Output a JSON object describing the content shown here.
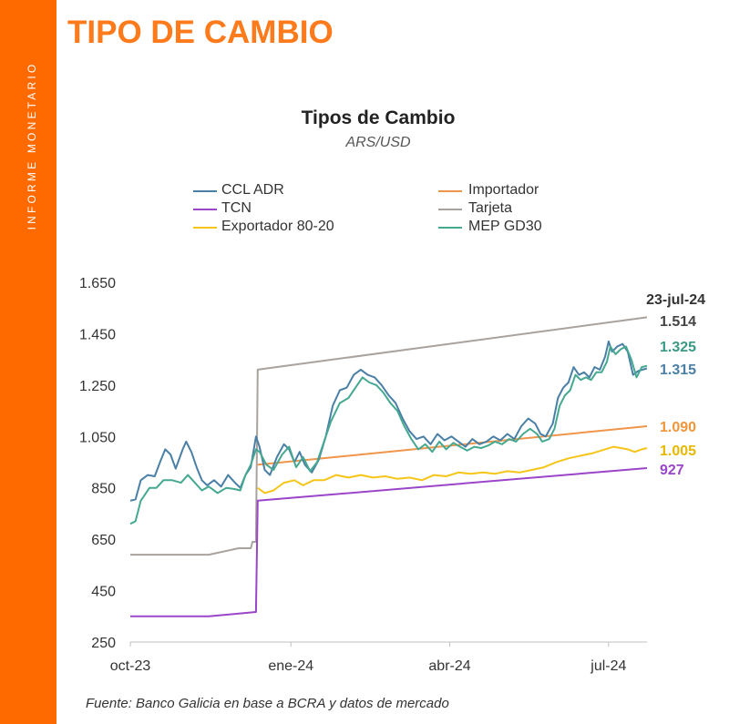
{
  "page": {
    "side_label": "INFORME MONETARIO",
    "section_title": "TIPO DE CAMBIO",
    "source": "Fuente: Banco Galicia en base a BCRA y datos de mercado"
  },
  "colors": {
    "accent": "#ff6a00",
    "section_title": "#ff7a1a"
  },
  "chart_data": {
    "type": "line",
    "title": "Tipos de Cambio",
    "subtitle": "ARS/USD",
    "xlabel": "",
    "ylabel": "",
    "xlim": [
      "2023-10-01",
      "2024-07-23"
    ],
    "ylim": [
      250,
      1650
    ],
    "y_ticks": [
      {
        "value": 250,
        "label": "250"
      },
      {
        "value": 450,
        "label": "450"
      },
      {
        "value": 650,
        "label": "650"
      },
      {
        "value": 850,
        "label": "850"
      },
      {
        "value": 1050,
        "label": "1.050"
      },
      {
        "value": 1250,
        "label": "1.250"
      },
      {
        "value": 1450,
        "label": "1.450"
      },
      {
        "value": 1650,
        "label": "1.650"
      }
    ],
    "x_ticks": [
      {
        "date": "2023-10-01",
        "label": "oct-23"
      },
      {
        "date": "2024-01-01",
        "label": "ene-24"
      },
      {
        "date": "2024-04-01",
        "label": "abr-24"
      },
      {
        "date": "2024-07-01",
        "label": "jul-24"
      }
    ],
    "grid": false,
    "legend_position": "top",
    "end_date_label": "23-jul-24",
    "series": [
      {
        "name": "CCL ADR",
        "color": "#4a7fa6",
        "end_label": "1.315",
        "points": [
          [
            "2023-10-01",
            800
          ],
          [
            "2023-10-04",
            805
          ],
          [
            "2023-10-07",
            880
          ],
          [
            "2023-10-11",
            900
          ],
          [
            "2023-10-15",
            895
          ],
          [
            "2023-10-18",
            950
          ],
          [
            "2023-10-21",
            1000
          ],
          [
            "2023-10-24",
            980
          ],
          [
            "2023-10-27",
            925
          ],
          [
            "2023-10-31",
            1000
          ],
          [
            "2023-11-02",
            1030
          ],
          [
            "2023-11-05",
            990
          ],
          [
            "2023-11-08",
            930
          ],
          [
            "2023-11-11",
            880
          ],
          [
            "2023-11-14",
            860
          ],
          [
            "2023-11-18",
            880
          ],
          [
            "2023-11-22",
            855
          ],
          [
            "2023-11-26",
            900
          ],
          [
            "2023-11-30",
            870
          ],
          [
            "2023-12-03",
            850
          ],
          [
            "2023-12-06",
            900
          ],
          [
            "2023-12-09",
            930
          ],
          [
            "2023-12-12",
            1050
          ],
          [
            "2023-12-14",
            1010
          ],
          [
            "2023-12-17",
            920
          ],
          [
            "2023-12-20",
            900
          ],
          [
            "2023-12-24",
            970
          ],
          [
            "2023-12-28",
            1020
          ],
          [
            "2023-12-31",
            1000
          ],
          [
            "2024-01-03",
            950
          ],
          [
            "2024-01-06",
            990
          ],
          [
            "2024-01-09",
            940
          ],
          [
            "2024-01-13",
            910
          ],
          [
            "2024-01-17",
            960
          ],
          [
            "2024-01-21",
            1050
          ],
          [
            "2024-01-25",
            1170
          ],
          [
            "2024-01-29",
            1230
          ],
          [
            "2024-02-02",
            1240
          ],
          [
            "2024-02-06",
            1290
          ],
          [
            "2024-02-10",
            1310
          ],
          [
            "2024-02-14",
            1290
          ],
          [
            "2024-02-18",
            1280
          ],
          [
            "2024-02-22",
            1250
          ],
          [
            "2024-02-26",
            1210
          ],
          [
            "2024-03-01",
            1180
          ],
          [
            "2024-03-05",
            1120
          ],
          [
            "2024-03-09",
            1070
          ],
          [
            "2024-03-13",
            1040
          ],
          [
            "2024-03-17",
            1050
          ],
          [
            "2024-03-21",
            1020
          ],
          [
            "2024-03-25",
            1060
          ],
          [
            "2024-03-29",
            1035
          ],
          [
            "2024-04-02",
            1050
          ],
          [
            "2024-04-06",
            1030
          ],
          [
            "2024-04-10",
            1010
          ],
          [
            "2024-04-14",
            1040
          ],
          [
            "2024-04-18",
            1020
          ],
          [
            "2024-04-22",
            1030
          ],
          [
            "2024-04-26",
            1050
          ],
          [
            "2024-04-30",
            1035
          ],
          [
            "2024-05-04",
            1060
          ],
          [
            "2024-05-08",
            1040
          ],
          [
            "2024-05-12",
            1090
          ],
          [
            "2024-05-16",
            1120
          ],
          [
            "2024-05-20",
            1100
          ],
          [
            "2024-05-23",
            1060
          ],
          [
            "2024-05-26",
            1050
          ],
          [
            "2024-05-30",
            1100
          ],
          [
            "2024-06-02",
            1200
          ],
          [
            "2024-06-05",
            1240
          ],
          [
            "2024-06-08",
            1260
          ],
          [
            "2024-06-11",
            1320
          ],
          [
            "2024-06-14",
            1290
          ],
          [
            "2024-06-17",
            1300
          ],
          [
            "2024-06-20",
            1280
          ],
          [
            "2024-06-23",
            1320
          ],
          [
            "2024-06-26",
            1310
          ],
          [
            "2024-06-29",
            1360
          ],
          [
            "2024-07-01",
            1420
          ],
          [
            "2024-07-03",
            1380
          ],
          [
            "2024-07-06",
            1400
          ],
          [
            "2024-07-09",
            1410
          ],
          [
            "2024-07-12",
            1380
          ],
          [
            "2024-07-15",
            1290
          ],
          [
            "2024-07-18",
            1305
          ],
          [
            "2024-07-23",
            1315
          ]
        ]
      },
      {
        "name": "Importador",
        "color": "#f0954a",
        "end_label": "1.090",
        "points": [
          [
            "2023-12-13",
            940
          ],
          [
            "2024-07-23",
            1090
          ]
        ]
      },
      {
        "name": "TCN",
        "color": "#9b45c8",
        "end_label": "927",
        "points": [
          [
            "2023-10-01",
            350
          ],
          [
            "2023-11-15",
            350
          ],
          [
            "2023-12-12",
            367
          ],
          [
            "2023-12-13",
            800
          ],
          [
            "2024-07-23",
            927
          ]
        ]
      },
      {
        "name": "Tarjeta",
        "color": "#a9a29d",
        "end_label": "1.514",
        "points": [
          [
            "2023-10-01",
            590
          ],
          [
            "2023-11-15",
            590
          ],
          [
            "2023-12-02",
            615
          ],
          [
            "2023-12-09",
            615
          ],
          [
            "2023-12-10",
            640
          ],
          [
            "2023-12-12",
            640
          ],
          [
            "2023-12-13",
            1310
          ],
          [
            "2024-07-23",
            1514
          ]
        ]
      },
      {
        "name": "Exportador 80-20",
        "color": "#f5c518",
        "end_label": "1.005",
        "points": [
          [
            "2023-12-13",
            850
          ],
          [
            "2023-12-17",
            830
          ],
          [
            "2023-12-22",
            840
          ],
          [
            "2023-12-28",
            870
          ],
          [
            "2024-01-03",
            880
          ],
          [
            "2024-01-08",
            860
          ],
          [
            "2024-01-14",
            880
          ],
          [
            "2024-01-20",
            880
          ],
          [
            "2024-01-27",
            900
          ],
          [
            "2024-02-03",
            890
          ],
          [
            "2024-02-10",
            900
          ],
          [
            "2024-02-17",
            890
          ],
          [
            "2024-02-24",
            895
          ],
          [
            "2024-03-02",
            885
          ],
          [
            "2024-03-09",
            890
          ],
          [
            "2024-03-16",
            880
          ],
          [
            "2024-03-23",
            900
          ],
          [
            "2024-03-30",
            895
          ],
          [
            "2024-04-06",
            910
          ],
          [
            "2024-04-13",
            905
          ],
          [
            "2024-04-20",
            910
          ],
          [
            "2024-04-27",
            905
          ],
          [
            "2024-05-04",
            915
          ],
          [
            "2024-05-11",
            910
          ],
          [
            "2024-05-18",
            920
          ],
          [
            "2024-05-25",
            930
          ],
          [
            "2024-06-01",
            950
          ],
          [
            "2024-06-08",
            965
          ],
          [
            "2024-06-15",
            975
          ],
          [
            "2024-06-22",
            985
          ],
          [
            "2024-06-29",
            1000
          ],
          [
            "2024-07-04",
            1010
          ],
          [
            "2024-07-08",
            1005
          ],
          [
            "2024-07-12",
            1000
          ],
          [
            "2024-07-16",
            990
          ],
          [
            "2024-07-20",
            1000
          ],
          [
            "2024-07-23",
            1005
          ]
        ]
      },
      {
        "name": "MEP GD30",
        "color": "#45a890",
        "end_label": "1.325",
        "points": [
          [
            "2023-10-01",
            710
          ],
          [
            "2023-10-04",
            720
          ],
          [
            "2023-10-07",
            800
          ],
          [
            "2023-10-12",
            850
          ],
          [
            "2023-10-16",
            850
          ],
          [
            "2023-10-20",
            880
          ],
          [
            "2023-10-25",
            880
          ],
          [
            "2023-10-30",
            870
          ],
          [
            "2023-11-03",
            900
          ],
          [
            "2023-11-07",
            870
          ],
          [
            "2023-11-11",
            840
          ],
          [
            "2023-11-15",
            855
          ],
          [
            "2023-11-20",
            830
          ],
          [
            "2023-11-25",
            850
          ],
          [
            "2023-11-30",
            845
          ],
          [
            "2023-12-03",
            840
          ],
          [
            "2023-12-06",
            900
          ],
          [
            "2023-12-09",
            940
          ],
          [
            "2023-12-12",
            1000
          ],
          [
            "2023-12-14",
            990
          ],
          [
            "2023-12-18",
            940
          ],
          [
            "2023-12-22",
            920
          ],
          [
            "2023-12-27",
            980
          ],
          [
            "2023-12-31",
            1010
          ],
          [
            "2024-01-04",
            930
          ],
          [
            "2024-01-08",
            970
          ],
          [
            "2024-01-12",
            915
          ],
          [
            "2024-01-16",
            950
          ],
          [
            "2024-01-20",
            1030
          ],
          [
            "2024-01-24",
            1110
          ],
          [
            "2024-01-29",
            1180
          ],
          [
            "2024-02-03",
            1200
          ],
          [
            "2024-02-07",
            1240
          ],
          [
            "2024-02-11",
            1280
          ],
          [
            "2024-02-15",
            1260
          ],
          [
            "2024-02-19",
            1250
          ],
          [
            "2024-02-23",
            1220
          ],
          [
            "2024-02-27",
            1180
          ],
          [
            "2024-03-02",
            1150
          ],
          [
            "2024-03-06",
            1090
          ],
          [
            "2024-03-10",
            1040
          ],
          [
            "2024-03-14",
            1000
          ],
          [
            "2024-03-18",
            1020
          ],
          [
            "2024-03-22",
            990
          ],
          [
            "2024-03-26",
            1030
          ],
          [
            "2024-03-30",
            1000
          ],
          [
            "2024-04-03",
            1025
          ],
          [
            "2024-04-07",
            1010
          ],
          [
            "2024-04-11",
            995
          ],
          [
            "2024-04-15",
            1010
          ],
          [
            "2024-04-19",
            1005
          ],
          [
            "2024-04-23",
            1015
          ],
          [
            "2024-04-27",
            1030
          ],
          [
            "2024-05-01",
            1020
          ],
          [
            "2024-05-05",
            1040
          ],
          [
            "2024-05-09",
            1030
          ],
          [
            "2024-05-13",
            1060
          ],
          [
            "2024-05-17",
            1080
          ],
          [
            "2024-05-21",
            1060
          ],
          [
            "2024-05-24",
            1030
          ],
          [
            "2024-05-28",
            1040
          ],
          [
            "2024-05-31",
            1080
          ],
          [
            "2024-06-03",
            1170
          ],
          [
            "2024-06-06",
            1210
          ],
          [
            "2024-06-09",
            1230
          ],
          [
            "2024-06-12",
            1290
          ],
          [
            "2024-06-15",
            1270
          ],
          [
            "2024-06-18",
            1280
          ],
          [
            "2024-06-21",
            1270
          ],
          [
            "2024-06-24",
            1300
          ],
          [
            "2024-06-27",
            1300
          ],
          [
            "2024-06-30",
            1340
          ],
          [
            "2024-07-02",
            1400
          ],
          [
            "2024-07-05",
            1370
          ],
          [
            "2024-07-08",
            1390
          ],
          [
            "2024-07-11",
            1400
          ],
          [
            "2024-07-14",
            1350
          ],
          [
            "2024-07-17",
            1280
          ],
          [
            "2024-07-20",
            1320
          ],
          [
            "2024-07-23",
            1325
          ]
        ]
      }
    ]
  }
}
